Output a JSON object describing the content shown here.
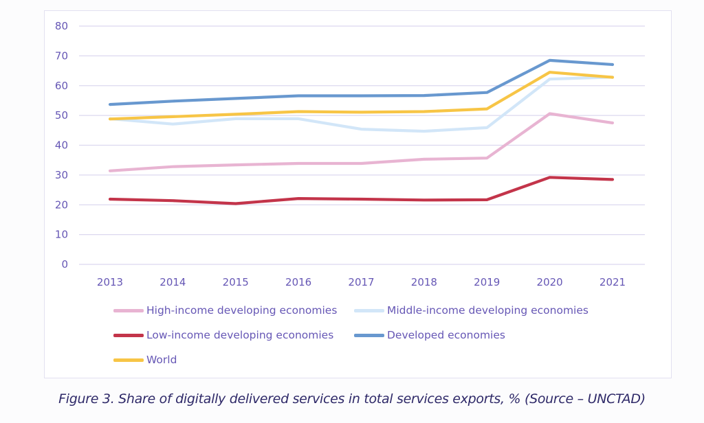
{
  "caption": "Figure 3. Share of digitally delivered services in total services exports, % (Source – UNCTAD)",
  "chart_data": {
    "type": "line",
    "title": "",
    "xlabel": "",
    "ylabel": "",
    "x": [
      "2013",
      "2014",
      "2015",
      "2016",
      "2017",
      "2018",
      "2019",
      "2020",
      "2021"
    ],
    "ylim": [
      0,
      80
    ],
    "yticks": [
      0,
      10,
      20,
      30,
      40,
      50,
      60,
      70,
      80
    ],
    "grid": true,
    "legend_position": "bottom",
    "series": [
      {
        "name": "High-income developing economies",
        "color": "#e8b4d2",
        "values": [
          31.4,
          32.8,
          33.4,
          33.9,
          33.9,
          35.3,
          35.7,
          50.6,
          47.5
        ]
      },
      {
        "name": "Middle-income developing economies",
        "color": "#d2e6f8",
        "values": [
          48.9,
          47.1,
          48.9,
          48.9,
          45.4,
          44.7,
          45.9,
          62.2,
          62.9
        ]
      },
      {
        "name": "Low-income developing economies",
        "color": "#c3344a",
        "values": [
          21.9,
          21.4,
          20.4,
          22.1,
          21.9,
          21.6,
          21.7,
          29.2,
          28.5
        ]
      },
      {
        "name": "Developed economies",
        "color": "#6898cf",
        "values": [
          53.7,
          54.8,
          55.7,
          56.6,
          56.6,
          56.7,
          57.7,
          68.5,
          67.1
        ]
      },
      {
        "name": "World",
        "color": "#f7c546",
        "values": [
          48.8,
          49.6,
          50.4,
          51.3,
          51.1,
          51.3,
          52.2,
          64.5,
          62.8
        ]
      }
    ]
  }
}
